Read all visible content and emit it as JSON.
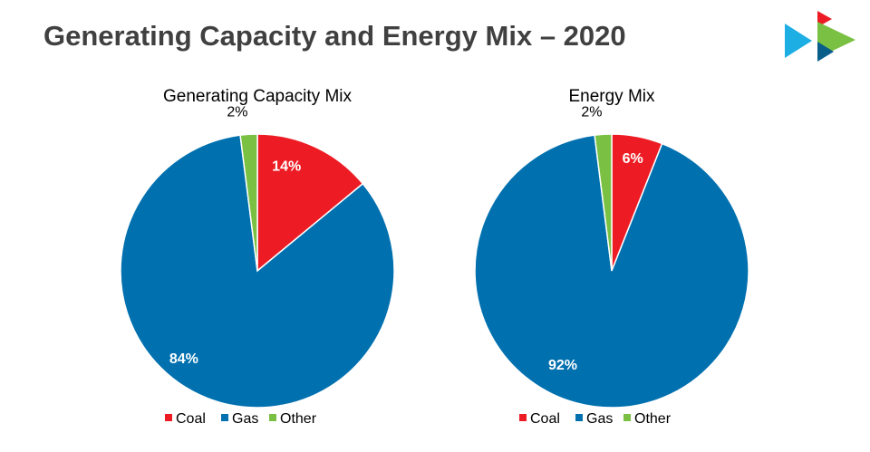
{
  "page": {
    "title": "Generating Capacity and Energy Mix – 2020"
  },
  "colors": {
    "coal": "#ED1C24",
    "gas": "#0070AF",
    "other": "#7AC143",
    "title_text": "#404040"
  },
  "logo": {
    "icon": "play-triangles-logo"
  },
  "chart_data": [
    {
      "type": "pie",
      "title": "Generating Capacity Mix",
      "categories": [
        "Coal",
        "Gas",
        "Other"
      ],
      "values": [
        14,
        84,
        2
      ],
      "labels": [
        "14%",
        "84%",
        "2%"
      ],
      "colors": [
        "#ED1C24",
        "#0070AF",
        "#7AC143"
      ],
      "legend_position": "bottom"
    },
    {
      "type": "pie",
      "title": "Energy Mix",
      "categories": [
        "Coal",
        "Gas",
        "Other"
      ],
      "values": [
        6,
        92,
        2
      ],
      "labels": [
        "6%",
        "92%",
        "2%"
      ],
      "colors": [
        "#ED1C24",
        "#0070AF",
        "#7AC143"
      ],
      "legend_position": "bottom"
    }
  ]
}
